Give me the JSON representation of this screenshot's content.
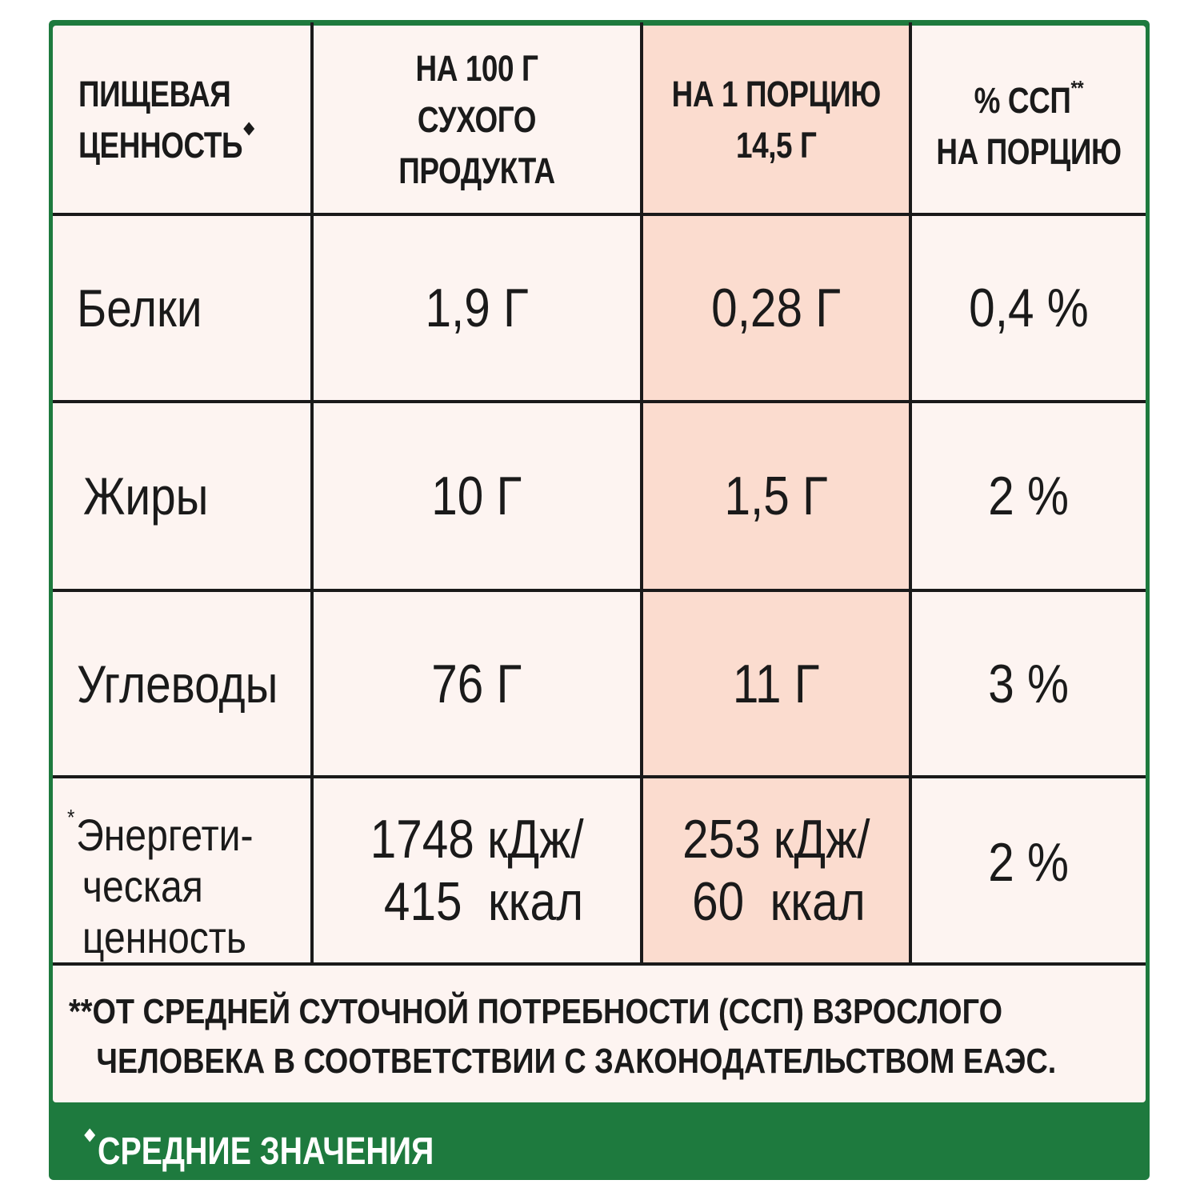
{
  "header": {
    "col1": [
      "ПИЩЕВАЯ",
      "ЦЕННОСТЬ"
    ],
    "col2": [
      "НА 100 Г",
      "СУХОГО ПРОДУКТА"
    ],
    "col3": [
      "НА 1 ПОРЦИЮ",
      "14,5 Г"
    ],
    "col4": [
      "% ССП",
      "НА ПОРЦИЮ"
    ],
    "col4_mark": "**"
  },
  "rows": [
    {
      "name": "Белки",
      "per100": "1,9 Г",
      "perPortion": "0,28 Г",
      "pct": "0,4 %"
    },
    {
      "name": "Жиры",
      "per100": "10 Г",
      "perPortion": "1,5 Г",
      "pct": "2 %"
    },
    {
      "name": "Углеводы",
      "per100": "76 Г",
      "perPortion": "11 Г",
      "pct": "3 %"
    }
  ],
  "energy": {
    "mark": "*",
    "name": [
      "Энергети-",
      "ческая",
      "ценность"
    ],
    "per100": [
      "1748 кДж/",
      "415  ккал"
    ],
    "perPortion": [
      "253 кДж/",
      "60  ккал"
    ],
    "pct": "2 %"
  },
  "footnote": [
    "**ОТ СРЕДНЕЙ СУТОЧНОЙ ПОТРЕБНОСТИ (ССП) ВЗРОСЛОГО",
    "ЧЕЛОВЕКА В СООТВЕТСТВИИ С ЗАКОНОДАТЕЛЬСТВОМ ЕАЭС."
  ],
  "bottom_note": "СРЕДНИЕ ЗНАЧЕНИЯ",
  "colors": {
    "frame": "#1e7a3e",
    "panel": "#fdf4f1",
    "highlight": "#fbdccf",
    "text": "#1a1a1a"
  }
}
